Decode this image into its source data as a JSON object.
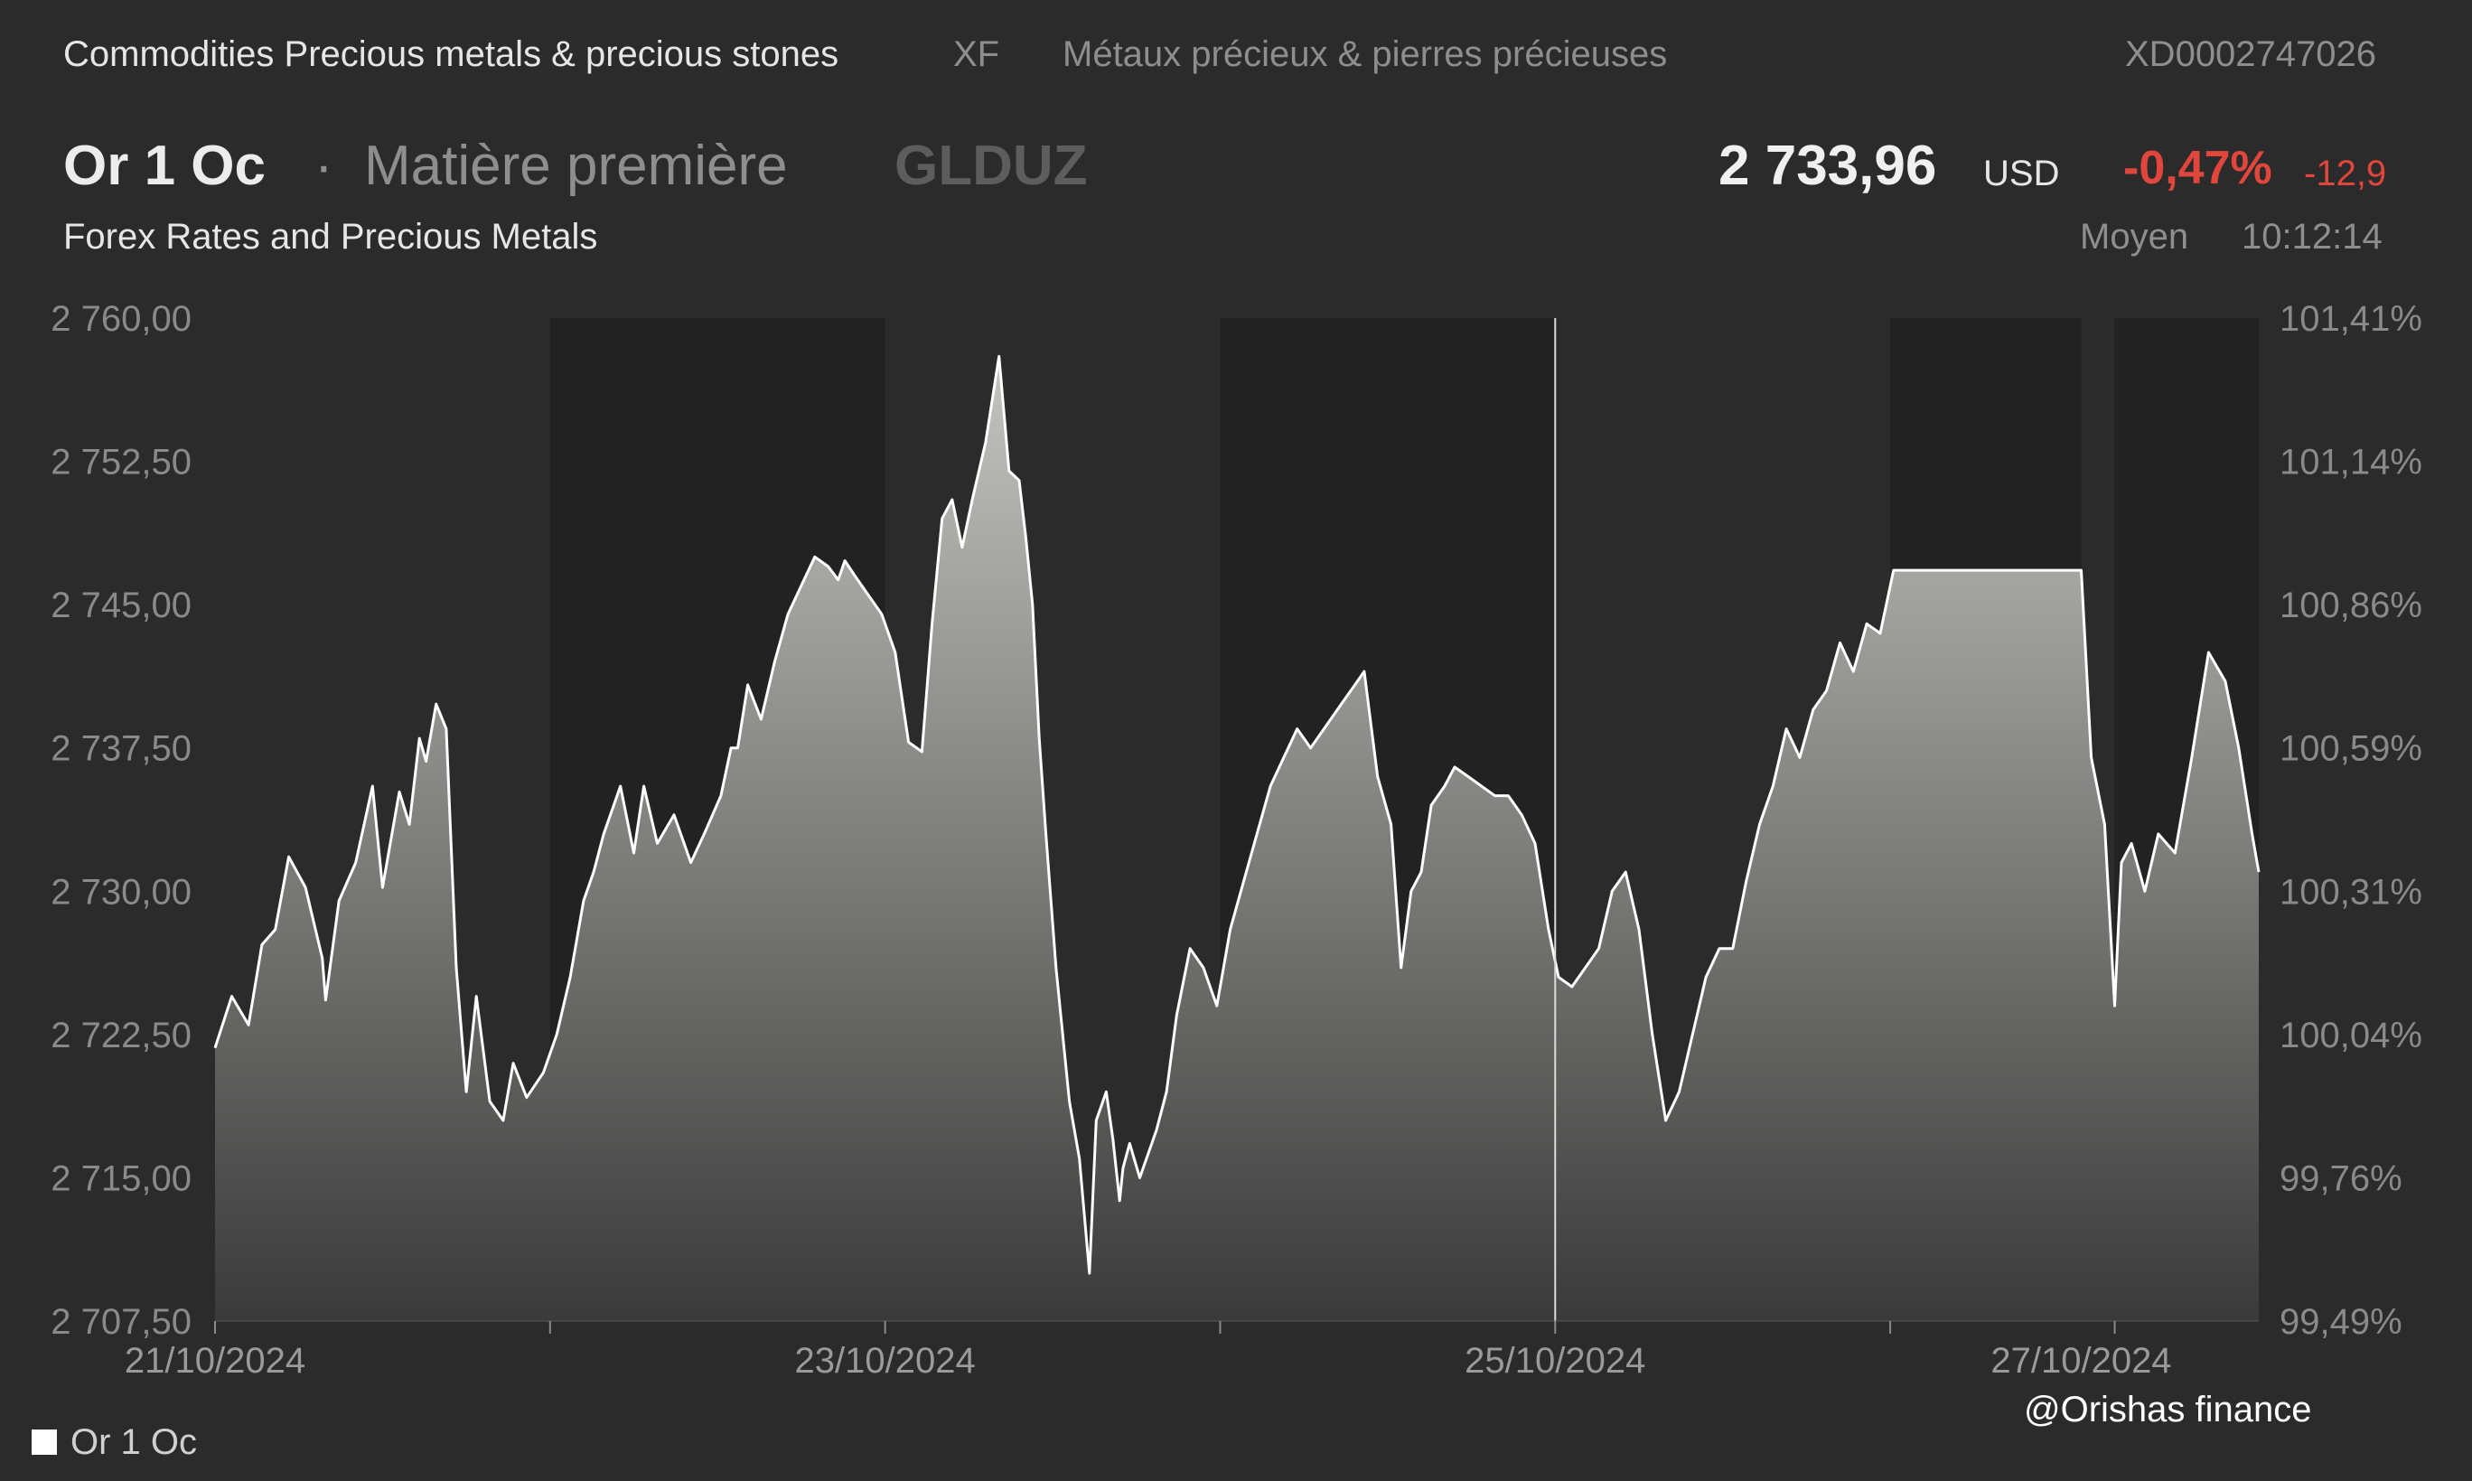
{
  "header": {
    "category": "Commodities Precious metals & precious stones",
    "exchange": "XF",
    "category_fr": "Métaux précieux & pierres précieuses",
    "isin": "XD0002747026"
  },
  "instrument": {
    "name": "Or 1 Oc",
    "separator": "·",
    "type": "Matière première",
    "symbol": "GLDUZ",
    "source": "Forex Rates and Precious Metals",
    "price": "2 733,96",
    "currency": "USD",
    "change_pct": "-0,47%",
    "change_abs": "-12,9",
    "price_type": "Moyen",
    "time": "10:12:14"
  },
  "colors": {
    "background": "#2b2b2b",
    "closed_session_band": "#222222",
    "line": "#ffffff",
    "negative": "#e0463c"
  },
  "legend": {
    "label": "Or 1 Oc",
    "placement": "bottom-left"
  },
  "watermark": "@Orishas finance",
  "chart_data": {
    "type": "area",
    "title": "",
    "xlabel": "",
    "ylabel": "",
    "ylim": [
      2707.5,
      2760.0
    ],
    "y_ticks": [
      "2 760,00",
      "2 752,50",
      "2 745,00",
      "2 737,50",
      "2 730,00",
      "2 722,50",
      "2 715,00",
      "2 707,50"
    ],
    "y2_ticks": [
      "101,41%",
      "101,14%",
      "100,86%",
      "100,59%",
      "100,31%",
      "100,04%",
      "99,76%",
      "99,49%"
    ],
    "x_ticks": [
      "21/10/2024",
      "23/10/2024",
      "25/10/2024",
      "27/10/2024"
    ],
    "xlim_days": [
      0,
      6.1
    ],
    "grid": false,
    "closed_session_bands_days": [
      [
        1.0,
        2.0
      ],
      [
        3.0,
        4.0
      ],
      [
        5.0,
        5.57
      ],
      [
        5.67,
        6.1
      ]
    ],
    "cursor_day": 4.0,
    "series": [
      {
        "name": "Or 1 Oc",
        "x_days": [
          0.0,
          0.05,
          0.1,
          0.14,
          0.18,
          0.22,
          0.27,
          0.32,
          0.33,
          0.37,
          0.42,
          0.47,
          0.5,
          0.55,
          0.58,
          0.61,
          0.63,
          0.66,
          0.69,
          0.72,
          0.75,
          0.78,
          0.82,
          0.86,
          0.89,
          0.93,
          0.98,
          1.02,
          1.06,
          1.1,
          1.13,
          1.16,
          1.21,
          1.25,
          1.28,
          1.32,
          1.37,
          1.42,
          1.46,
          1.51,
          1.54,
          1.56,
          1.59,
          1.63,
          1.67,
          1.71,
          1.75,
          1.79,
          1.83,
          1.86,
          1.88,
          1.91,
          1.95,
          1.99,
          2.03,
          2.07,
          2.11,
          2.14,
          2.17,
          2.2,
          2.23,
          2.26,
          2.3,
          2.34,
          2.37,
          2.4,
          2.42,
          2.44,
          2.46,
          2.48,
          2.51,
          2.55,
          2.58,
          2.6,
          2.61,
          2.63,
          2.66,
          2.68,
          2.7,
          2.71,
          2.73,
          2.76,
          2.78,
          2.81,
          2.84,
          2.87,
          2.91,
          2.95,
          2.99,
          3.03,
          3.07,
          3.11,
          3.15,
          3.19,
          3.23,
          3.27,
          3.31,
          3.35,
          3.39,
          3.43,
          3.47,
          3.51,
          3.54,
          3.57,
          3.6,
          3.63,
          3.67,
          3.7,
          3.74,
          3.78,
          3.82,
          3.86,
          3.9,
          3.94,
          3.98,
          4.01,
          4.05,
          4.09,
          4.13,
          4.17,
          4.21,
          4.25,
          4.29,
          4.33,
          4.37,
          4.41,
          4.45,
          4.49,
          4.53,
          4.57,
          4.61,
          4.65,
          4.69,
          4.73,
          4.77,
          4.81,
          4.85,
          4.89,
          4.93,
          4.97,
          5.01,
          5.05,
          5.09,
          5.13,
          5.17,
          5.21,
          5.25,
          5.29,
          5.33,
          5.37,
          5.41,
          5.45,
          5.49,
          5.53,
          5.57,
          5.6,
          5.64,
          5.67,
          5.69,
          5.72,
          5.76,
          5.8,
          5.85,
          5.9,
          5.95,
          6.0,
          6.04,
          6.08,
          6.1
        ],
        "values": [
          2721.8,
          2724.5,
          2723.0,
          2727.2,
          2728.0,
          2731.8,
          2730.2,
          2726.5,
          2724.3,
          2729.5,
          2731.5,
          2735.5,
          2730.2,
          2735.2,
          2733.5,
          2738.0,
          2736.8,
          2739.8,
          2738.5,
          2726.0,
          2719.5,
          2724.5,
          2719.0,
          2718.0,
          2721.0,
          2719.2,
          2720.5,
          2722.5,
          2725.5,
          2729.5,
          2731.0,
          2733.0,
          2735.5,
          2732.0,
          2735.5,
          2732.5,
          2734.0,
          2731.5,
          2733.0,
          2735.0,
          2737.5,
          2737.5,
          2740.8,
          2739.0,
          2742.0,
          2744.5,
          2746.0,
          2747.5,
          2747.0,
          2746.3,
          2747.3,
          2746.5,
          2745.5,
          2744.5,
          2742.5,
          2737.8,
          2737.3,
          2744.0,
          2749.5,
          2750.5,
          2748.0,
          2750.5,
          2753.5,
          2758.0,
          2752.0,
          2751.5,
          2748.5,
          2745.0,
          2738.0,
          2733.0,
          2726.0,
          2719.0,
          2716.0,
          2712.0,
          2710.0,
          2718.0,
          2719.5,
          2717.0,
          2713.8,
          2715.5,
          2716.8,
          2715.0,
          2716.0,
          2717.5,
          2719.5,
          2723.5,
          2727.0,
          2726.0,
          2724.0,
          2728.0,
          2730.5,
          2733.0,
          2735.5,
          2737.0,
          2738.5,
          2737.5,
          2738.5,
          2739.5,
          2740.5,
          2741.5,
          2736.0,
          2733.5,
          2726.0,
          2730.0,
          2731.0,
          2734.5,
          2735.5,
          2736.5,
          2736.0,
          2735.5,
          2735.0,
          2735.0,
          2734.0,
          2732.5,
          2728.0,
          2725.5,
          2725.0,
          2726.0,
          2727.0,
          2730.0,
          2731.0,
          2728.0,
          2722.5,
          2718.0,
          2719.5,
          2722.5,
          2725.5,
          2727.0,
          2727.0,
          2730.5,
          2733.5,
          2735.5,
          2738.5,
          2737.0,
          2739.5,
          2740.5,
          2743.0,
          2741.5,
          2744.0,
          2743.5,
          2746.8,
          2746.8,
          2746.8,
          2746.8,
          2746.8,
          2746.8,
          2746.8,
          2746.8,
          2746.8,
          2746.8,
          2746.8,
          2746.8,
          2746.8,
          2746.8,
          2746.8,
          2737.0,
          2733.5,
          2724.0,
          2731.5,
          2732.5,
          2730.0,
          2733.0,
          2732.0,
          2737.0,
          2742.5,
          2741.0,
          2737.5,
          2733.0,
          2731.0
        ]
      }
    ]
  }
}
